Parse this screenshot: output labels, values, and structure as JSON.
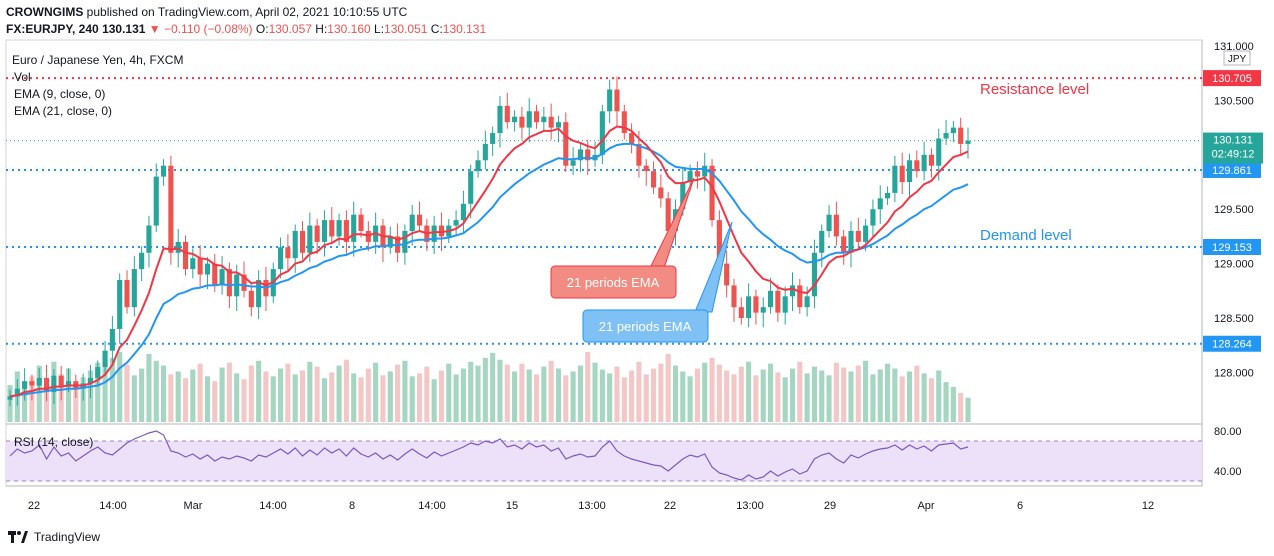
{
  "header": {
    "publisher": "CROWNGIMS",
    "published_text": "published on TradingView.com, April 02, 2021 10:10:55 UTC",
    "symbol": "FX:EURJPY, 240",
    "last": "130.131",
    "change_arrow": "▼",
    "change": "−0.110 (−0.08%)",
    "o_label": "O:",
    "o_value": "130.057",
    "h_label": "H:",
    "h_value": "130.160",
    "l_label": "L:",
    "l_value": "130.051",
    "c_label": "C:",
    "c_value": "130.131"
  },
  "legend": {
    "title": "Euro / Japanese Yen, 4h, FXCM",
    "vol": "Vol",
    "ema9": "EMA (9, close, 0)",
    "ema21": "EMA (21, close, 0)",
    "rsi": "RSI (14, close)"
  },
  "currency_tag": "JPY",
  "annotations": {
    "resistance": "Resistance level",
    "demand": "Demand level",
    "ema_red": "21 periods EMA",
    "ema_blue": "21 periods EMA"
  },
  "footer": {
    "brand": "TradingView"
  },
  "colors": {
    "up": "#26a69a",
    "down": "#ef5350",
    "ema9": "#f23645",
    "ema21": "#2196f3",
    "level": "#2196f3",
    "resistance": "#f23645",
    "rsi": "#7e57c2",
    "rsi_band": "#ede1fa",
    "vol_up": "#a5d6c2",
    "vol_down": "#f4c7c7"
  },
  "chart_data": {
    "type": "candlestick",
    "price_axis": {
      "min": 127.6,
      "max": 131.0,
      "ticks": [
        "131.000",
        "130.500",
        "130.000",
        "129.500",
        "129.000",
        "128.500",
        "128.000"
      ]
    },
    "rsi_axis": {
      "min": 25,
      "max": 85,
      "ticks": [
        "80.00",
        "40.00"
      ],
      "band": [
        30,
        70
      ]
    },
    "time_ticks": [
      "22",
      "14:00",
      "Mar",
      "14:00",
      "8",
      "14:00",
      "15",
      "13:00",
      "22",
      "13:00",
      "29",
      "Apr",
      "6",
      "12"
    ],
    "levels": [
      {
        "price": 130.705,
        "label": "130.705",
        "kind": "resistance"
      },
      {
        "price": 129.861,
        "label": "129.861",
        "kind": "support"
      },
      {
        "price": 129.153,
        "label": "129.153",
        "kind": "support"
      },
      {
        "price": 128.264,
        "label": "128.264",
        "kind": "support"
      }
    ],
    "last_price": {
      "value": 130.131,
      "label": "130.131",
      "countdown": "02:49:12"
    },
    "closes": [
      127.78,
      127.85,
      127.92,
      127.88,
      127.95,
      127.82,
      127.97,
      127.88,
      127.92,
      127.85,
      127.9,
      127.95,
      128.05,
      128.2,
      128.4,
      128.85,
      128.6,
      128.95,
      129.1,
      129.35,
      129.8,
      129.9,
      129.1,
      129.2,
      128.95,
      129.05,
      128.9,
      129.0,
      128.8,
      128.95,
      128.7,
      128.9,
      128.75,
      128.6,
      128.85,
      128.7,
      128.95,
      129.15,
      129.05,
      129.3,
      129.1,
      129.35,
      129.2,
      129.4,
      129.25,
      129.4,
      129.2,
      129.45,
      129.3,
      129.2,
      129.35,
      129.15,
      129.25,
      129.1,
      129.3,
      129.45,
      129.35,
      129.2,
      129.35,
      129.25,
      129.35,
      129.4,
      129.55,
      129.85,
      129.95,
      130.1,
      130.2,
      130.45,
      130.3,
      130.35,
      130.25,
      130.4,
      130.3,
      130.35,
      130.25,
      130.3,
      129.9,
      129.95,
      130.05,
      129.95,
      130.0,
      130.4,
      130.6,
      130.4,
      130.2,
      130.1,
      129.9,
      129.85,
      129.7,
      129.6,
      129.3,
      129.5,
      129.75,
      129.85,
      129.8,
      129.9,
      129.4,
      129.0,
      128.8,
      128.6,
      128.5,
      128.7,
      128.55,
      128.6,
      128.75,
      128.55,
      128.7,
      128.8,
      128.6,
      128.7,
      129.1,
      129.3,
      129.45,
      129.25,
      129.1,
      129.3,
      129.2,
      129.35,
      129.5,
      129.6,
      129.65,
      129.9,
      129.75,
      129.95,
      129.85,
      130.0,
      129.9,
      130.15,
      130.2,
      130.25,
      130.1,
      130.13
    ],
    "ema9": [
      127.78,
      127.79,
      127.82,
      127.83,
      127.85,
      127.85,
      127.87,
      127.87,
      127.88,
      127.88,
      127.88,
      127.9,
      127.93,
      127.98,
      128.07,
      128.23,
      128.3,
      128.43,
      128.57,
      128.73,
      128.95,
      129.14,
      129.13,
      129.14,
      129.1,
      129.09,
      129.05,
      129.04,
      128.99,
      128.98,
      128.92,
      128.92,
      128.88,
      128.82,
      128.83,
      128.8,
      128.83,
      128.9,
      128.93,
      129.0,
      129.02,
      129.09,
      129.11,
      129.17,
      129.19,
      129.23,
      129.22,
      129.27,
      129.27,
      129.26,
      129.28,
      129.25,
      129.25,
      129.22,
      129.24,
      129.28,
      129.3,
      129.28,
      129.29,
      129.29,
      129.3,
      129.32,
      129.37,
      129.47,
      129.57,
      129.67,
      129.78,
      129.91,
      129.99,
      130.06,
      130.1,
      130.16,
      130.19,
      130.22,
      130.22,
      130.24,
      130.17,
      130.13,
      130.11,
      130.08,
      130.06,
      130.13,
      130.22,
      130.26,
      130.25,
      130.22,
      130.15,
      130.09,
      130.01,
      129.93,
      129.8,
      129.74,
      129.74,
      129.76,
      129.77,
      129.79,
      129.71,
      129.57,
      129.41,
      129.25,
      129.1,
      129.02,
      128.93,
      128.86,
      128.84,
      128.78,
      128.76,
      128.77,
      128.74,
      128.73,
      128.8,
      128.9,
      129.01,
      129.06,
      129.07,
      129.11,
      129.13,
      129.17,
      129.24,
      129.31,
      129.38,
      129.48,
      129.53,
      129.61,
      129.66,
      129.73,
      129.76,
      129.84,
      129.91,
      129.98,
      130.0,
      130.03
    ],
    "ema21": [
      127.78,
      127.79,
      127.8,
      127.81,
      127.82,
      127.83,
      127.84,
      127.84,
      127.85,
      127.85,
      127.86,
      127.87,
      127.88,
      127.91,
      127.96,
      128.04,
      128.09,
      128.17,
      128.25,
      128.35,
      128.5,
      128.63,
      128.67,
      128.72,
      128.74,
      128.77,
      128.78,
      128.8,
      128.8,
      128.81,
      128.8,
      128.81,
      128.8,
      128.79,
      128.79,
      128.78,
      128.8,
      128.83,
      128.85,
      128.89,
      128.92,
      128.96,
      128.98,
      129.02,
      129.04,
      129.07,
      129.08,
      129.11,
      129.13,
      129.14,
      129.16,
      129.16,
      129.17,
      129.17,
      129.18,
      129.21,
      129.22,
      129.22,
      129.23,
      129.23,
      129.24,
      129.26,
      129.28,
      129.33,
      129.38,
      129.45,
      129.52,
      129.61,
      129.67,
      129.73,
      129.78,
      129.83,
      129.87,
      129.91,
      129.94,
      129.97,
      129.96,
      129.96,
      129.97,
      129.97,
      129.97,
      130.01,
      130.06,
      130.09,
      130.1,
      130.1,
      130.08,
      130.06,
      130.03,
      129.99,
      129.93,
      129.89,
      129.88,
      129.87,
      129.87,
      129.87,
      129.83,
      129.76,
      129.67,
      129.58,
      129.48,
      129.41,
      129.33,
      129.27,
      129.22,
      129.16,
      129.12,
      129.09,
      129.04,
      129.01,
      129.02,
      129.04,
      129.08,
      129.1,
      129.1,
      129.12,
      129.13,
      129.15,
      129.18,
      129.22,
      129.26,
      129.32,
      129.36,
      129.41,
      129.45,
      129.5,
      129.53,
      129.58,
      129.63,
      129.68,
      129.7,
      129.73
    ],
    "volumes": [
      38,
      52,
      41,
      47,
      58,
      44,
      62,
      49,
      55,
      40,
      46,
      53,
      61,
      57,
      66,
      72,
      59,
      48,
      55,
      70,
      63,
      58,
      49,
      52,
      45,
      54,
      60,
      47,
      42,
      56,
      61,
      50,
      44,
      58,
      63,
      52,
      47,
      55,
      60,
      49,
      53,
      62,
      57,
      45,
      51,
      58,
      64,
      50,
      46,
      55,
      61,
      48,
      52,
      59,
      63,
      47,
      50,
      57,
      44,
      53,
      60,
      49,
      55,
      62,
      58,
      66,
      71,
      64,
      59,
      52,
      60,
      54,
      49,
      57,
      63,
      55,
      48,
      52,
      58,
      72,
      61,
      54,
      50,
      57,
      46,
      53,
      62,
      49,
      55,
      60,
      70,
      58,
      52,
      47,
      55,
      61,
      66,
      59,
      53,
      49,
      57,
      62,
      48,
      54,
      60,
      51,
      46,
      55,
      62,
      50,
      57,
      53,
      48,
      61,
      56,
      52,
      58,
      63,
      49,
      54,
      60,
      55,
      47,
      52,
      58,
      50,
      45,
      53,
      41,
      36,
      30,
      25
    ],
    "rsi": [
      55,
      62,
      58,
      60,
      66,
      52,
      64,
      55,
      58,
      50,
      55,
      60,
      64,
      58,
      56,
      62,
      68,
      72,
      75,
      78,
      80,
      76,
      60,
      58,
      54,
      57,
      52,
      56,
      50,
      54,
      52,
      55,
      53,
      50,
      56,
      54,
      58,
      62,
      57,
      63,
      55,
      61,
      56,
      63,
      58,
      62,
      55,
      63,
      57,
      54,
      58,
      52,
      56,
      51,
      57,
      62,
      57,
      53,
      59,
      55,
      58,
      61,
      64,
      68,
      66,
      70,
      68,
      72,
      64,
      66,
      62,
      68,
      64,
      66,
      60,
      63,
      52,
      55,
      57,
      54,
      55,
      64,
      70,
      60,
      55,
      52,
      50,
      48,
      46,
      45,
      40,
      46,
      52,
      56,
      54,
      57,
      44,
      38,
      36,
      33,
      31,
      36,
      32,
      34,
      40,
      35,
      39,
      42,
      37,
      40,
      52,
      56,
      58,
      52,
      48,
      56,
      53,
      57,
      60,
      62,
      63,
      66,
      61,
      66,
      62,
      65,
      60,
      66,
      67,
      68,
      62,
      64
    ]
  }
}
